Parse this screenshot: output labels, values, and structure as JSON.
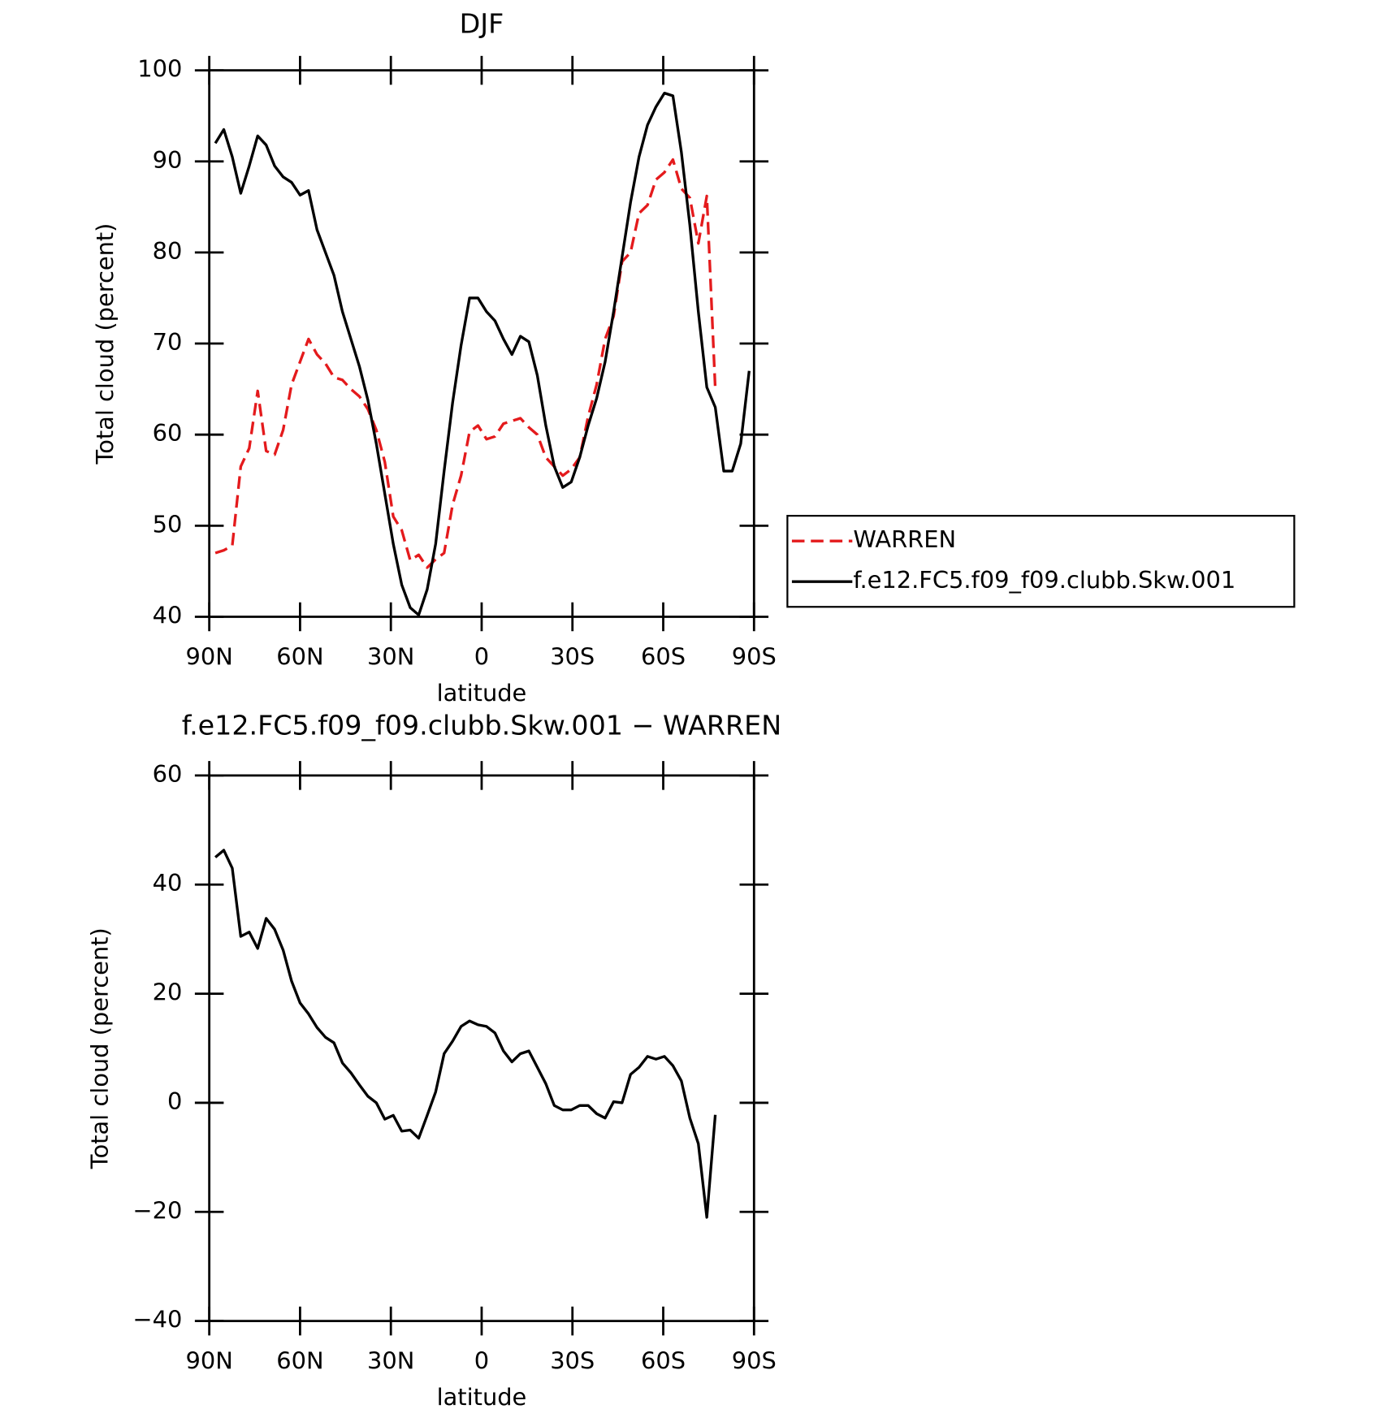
{
  "chart_data": [
    {
      "type": "line",
      "title": "DJF",
      "x_label": "latitude",
      "y_label": "Total cloud (percent)",
      "x": [
        88,
        85.2,
        82.4,
        79.6,
        76.8,
        74,
        71.2,
        68.4,
        65.6,
        62.8,
        60,
        57.2,
        54.4,
        51.6,
        48.8,
        46,
        43.2,
        40.4,
        37.6,
        34.8,
        32,
        29.2,
        26.4,
        23.6,
        20.8,
        18,
        15.2,
        12.4,
        9.6,
        6.8,
        4,
        1.2,
        -1.6,
        -4.4,
        -7.2,
        -10,
        -12.8,
        -15.6,
        -18.4,
        -21.2,
        -24,
        -26.8,
        -29.6,
        -32.4,
        -35.2,
        -38,
        -40.8,
        -43.6,
        -46.4,
        -49.2,
        -52,
        -54.8,
        -57.6,
        -60.4,
        -63.2,
        -66,
        -68.8,
        -71.6,
        -74.4,
        -77.2,
        -80,
        -82.8,
        -85.6,
        -88.4
      ],
      "series": [
        {
          "name": "WARREN",
          "color": "#e41a1c",
          "dashed": true,
          "values": [
            47,
            47.3,
            47.8,
            56.5,
            58.5,
            64.8,
            58.2,
            57.8,
            60.5,
            65.5,
            68,
            70.5,
            68.8,
            67.8,
            66.3,
            66,
            65,
            64.2,
            62.8,
            60.5,
            57,
            51,
            49.5,
            46.2,
            46.8,
            45.4,
            46.3,
            47,
            52.3,
            55.5,
            60.3,
            61,
            59.5,
            59.8,
            61.2,
            61.5,
            61.8,
            60.8,
            60,
            57.5,
            56.5,
            55.5,
            56.2,
            57.5,
            62,
            65.5,
            70.5,
            73,
            79,
            80,
            84.3,
            85.2,
            88,
            88.8,
            90.2,
            87,
            86,
            81,
            86.2,
            65,
            null,
            null,
            null,
            null
          ]
        },
        {
          "name": "f.e12.FC5.f09_f09.clubb.Skw.001",
          "color": "#000000",
          "dashed": false,
          "values": [
            92,
            93.5,
            90.5,
            86.5,
            89.5,
            92.8,
            91.8,
            89.5,
            88.3,
            87.7,
            86.3,
            86.8,
            82.5,
            80,
            77.5,
            73.5,
            70.5,
            67.5,
            63.8,
            59,
            53.5,
            48,
            43.5,
            41,
            40.2,
            43,
            48,
            56,
            63.5,
            69.8,
            75,
            75,
            73.5,
            72.5,
            70.5,
            68.8,
            70.8,
            70.2,
            66.5,
            61,
            56.5,
            54.2,
            54.8,
            57.5,
            61,
            64,
            68,
            73.5,
            79.5,
            85.5,
            90.5,
            94,
            96,
            97.5,
            97.2,
            91,
            83,
            73.5,
            65.2,
            63,
            56,
            56,
            59,
            67
          ]
        }
      ],
      "xlim": [
        90,
        -90
      ],
      "xticks": [
        {
          "value": 90,
          "label": "90N"
        },
        {
          "value": 60,
          "label": "60N"
        },
        {
          "value": 30,
          "label": "30N"
        },
        0,
        {
          "value": -30,
          "label": "30S"
        },
        {
          "value": -60,
          "label": "60S"
        },
        {
          "value": -90,
          "label": "90S"
        }
      ],
      "ylim": [
        40,
        100
      ],
      "yticks": [
        40,
        50,
        60,
        70,
        80,
        90,
        100
      ],
      "legend": "right"
    },
    {
      "type": "line",
      "title": "f.e12.FC5.f09_f09.clubb.Skw.001 − WARREN",
      "x_label": "latitude",
      "y_label": "Total cloud (percent)",
      "x": [
        88,
        85.2,
        82.4,
        79.6,
        76.8,
        74,
        71.2,
        68.4,
        65.6,
        62.8,
        60,
        57.2,
        54.4,
        51.6,
        48.8,
        46,
        43.2,
        40.4,
        37.6,
        34.8,
        32,
        29.2,
        26.4,
        23.6,
        20.8,
        18,
        15.2,
        12.4,
        9.6,
        6.8,
        4,
        1.2,
        -1.6,
        -4.4,
        -7.2,
        -10,
        -12.8,
        -15.6,
        -18.4,
        -21.2,
        -24,
        -26.8,
        -29.6,
        -32.4,
        -35.2,
        -38,
        -40.8,
        -43.6,
        -46.4,
        -49.2,
        -52,
        -54.8,
        -57.6,
        -60.4,
        -63.2,
        -66,
        -68.8,
        -71.6,
        -74.4,
        -77.2,
        -80,
        -82.8,
        -85.6,
        -88.4
      ],
      "series": [
        {
          "color": "#000000",
          "dashed": false,
          "values": [
            45,
            46.3,
            43,
            30.5,
            31.3,
            28.3,
            33.8,
            31.8,
            28,
            22.3,
            18.3,
            16.3,
            13.8,
            12,
            11,
            7.3,
            5.5,
            3.3,
            1.2,
            0,
            -3,
            -2.3,
            -5.2,
            -5,
            -6.5,
            -2.3,
            2,
            9,
            11.3,
            14,
            15,
            14.3,
            14,
            12.8,
            9.5,
            7.5,
            9,
            9.5,
            6.5,
            3.5,
            -0.5,
            -1.3,
            -1.3,
            -0.5,
            -0.5,
            -2,
            -2.8,
            0.2,
            0,
            5.2,
            6.5,
            8.5,
            8,
            8.5,
            6.8,
            4,
            -2.8,
            -7.5,
            -21,
            -2.2,
            null,
            null,
            null,
            null
          ]
        }
      ],
      "xlim": [
        90,
        -90
      ],
      "xticks": [
        {
          "value": 90,
          "label": "90N"
        },
        {
          "value": 60,
          "label": "60N"
        },
        {
          "value": 30,
          "label": "30N"
        },
        0,
        {
          "value": -30,
          "label": "30S"
        },
        {
          "value": -60,
          "label": "60S"
        },
        {
          "value": -90,
          "label": "90S"
        }
      ],
      "ylim": [
        -40,
        60
      ],
      "yticks": [
        {
          "value": -40,
          "label": "−40"
        },
        {
          "value": -20,
          "label": "−20"
        },
        0,
        20,
        40,
        60
      ]
    }
  ]
}
